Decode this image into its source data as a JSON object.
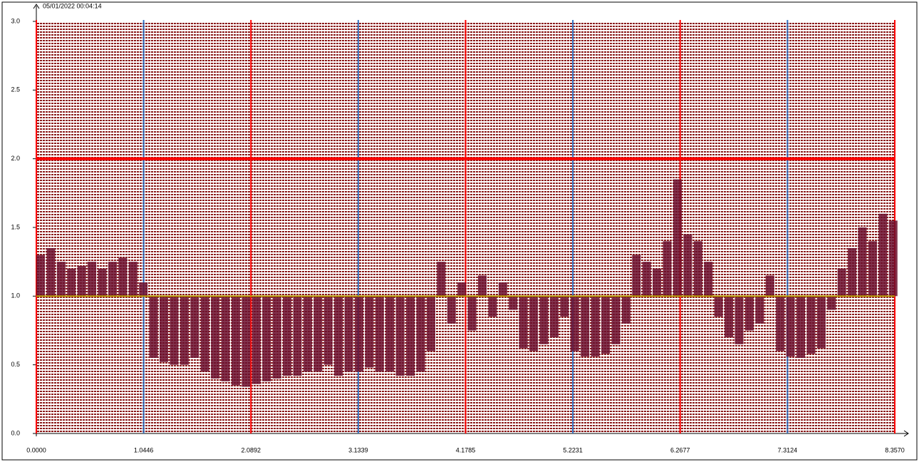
{
  "chart_data": {
    "type": "bar",
    "title": "05/01/2022 00:04:14",
    "title_color": "#ff0000",
    "x": [
      0,
      0.1,
      0.2,
      0.3,
      0.4,
      0.5,
      0.6,
      0.7,
      0.8,
      0.9,
      1.0,
      1.1,
      1.2,
      1.3,
      1.4,
      1.5,
      1.6,
      1.7,
      1.8,
      1.9,
      2.0,
      2.1,
      2.2,
      2.3,
      2.4,
      2.5,
      2.6,
      2.7,
      2.8,
      2.9,
      3.0,
      3.1,
      3.2,
      3.3,
      3.4,
      3.5,
      3.6,
      3.7,
      3.8,
      3.9,
      4.0,
      4.1,
      4.2,
      4.3,
      4.4,
      4.5,
      4.6,
      4.7,
      4.8,
      4.9,
      5.0,
      5.1,
      5.2,
      5.3,
      5.4,
      5.5,
      5.6,
      5.7,
      5.8,
      5.9,
      6.0,
      6.1,
      6.2,
      6.3,
      6.4,
      6.5,
      6.6,
      6.7,
      6.8,
      6.9,
      7.0,
      7.1,
      7.2,
      7.3,
      7.4,
      7.5,
      7.6,
      7.7,
      7.8,
      7.9,
      8.0,
      8.1,
      8.2,
      8.3
    ],
    "values": [
      1.3,
      1.35,
      1.25,
      1.2,
      1.22,
      1.25,
      1.2,
      1.25,
      1.28,
      1.25,
      1.1,
      0.55,
      0.52,
      0.5,
      0.5,
      0.55,
      0.45,
      0.4,
      0.38,
      0.35,
      0.34,
      0.36,
      0.38,
      0.4,
      0.42,
      0.42,
      0.45,
      0.45,
      0.5,
      0.42,
      0.45,
      0.45,
      0.48,
      0.45,
      0.45,
      0.42,
      0.42,
      0.45,
      0.6,
      1.25,
      0.8,
      1.1,
      0.75,
      1.15,
      0.85,
      1.1,
      0.9,
      0.62,
      0.6,
      0.65,
      0.7,
      0.85,
      0.6,
      0.56,
      0.56,
      0.58,
      0.65,
      0.8,
      1.3,
      1.25,
      1.2,
      1.4,
      1.85,
      1.45,
      1.4,
      1.25,
      0.85,
      0.7,
      0.65,
      0.75,
      0.8,
      1.15,
      0.6,
      0.56,
      0.55,
      0.58,
      0.62,
      0.9,
      1.2,
      1.35,
      1.5,
      1.4,
      1.6,
      1.55
    ],
    "color": "#6b0f2e",
    "hlines": [
      {
        "value": 2.0,
        "color": "#ff0000"
      },
      {
        "value": 1.0,
        "color": "#b89a00"
      }
    ],
    "xlim": [
      0,
      8.357
    ],
    "xticks": [
      {
        "value": 0,
        "label": "0.0000"
      },
      {
        "value": 1.0446,
        "label": "1.0446"
      },
      {
        "value": 2.0892,
        "label": "2.0892"
      },
      {
        "value": 3.1339,
        "label": "3.1339"
      },
      {
        "value": 4.1785,
        "label": "4.1785"
      },
      {
        "value": 5.2231,
        "label": "5.2231"
      },
      {
        "value": 6.2677,
        "label": "6.2677"
      },
      {
        "value": 7.3124,
        "label": "7.3124"
      },
      {
        "value": 8.357,
        "label": "8.3570"
      }
    ],
    "ylim": [
      0,
      3
    ],
    "yticks": [
      {
        "value": 0,
        "label": "0.0"
      },
      0.5,
      {
        "value": 1,
        "label": "1.0"
      },
      1.5,
      {
        "value": 2,
        "label": "2.0"
      },
      2.5,
      {
        "value": 3,
        "label": "3.0"
      }
    ],
    "grid_colors": [
      "#ff0000",
      "#3070c0"
    ]
  }
}
